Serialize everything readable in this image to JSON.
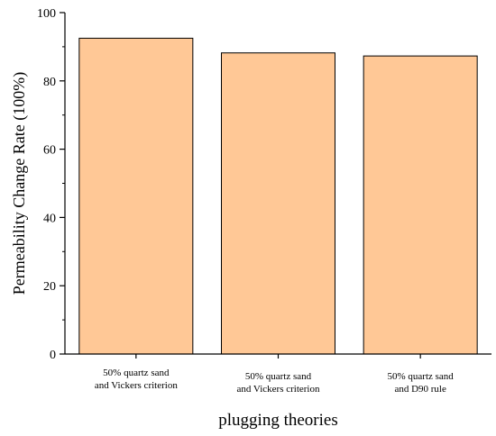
{
  "chart_data": {
    "type": "bar",
    "categories": [
      [
        "50% quartz sand",
        "and Vickers criterion"
      ],
      [
        "50% quartz sand",
        "and Vickers criterion"
      ],
      [
        "50% quartz sand",
        "and D90 rule"
      ]
    ],
    "values": [
      92.5,
      88.2,
      87.3
    ],
    "xlabel": "plugging theories",
    "ylabel": "Permeability Change Rate (100%)",
    "ylim": [
      0,
      100
    ],
    "yticks": [
      0,
      20,
      40,
      60,
      80,
      100
    ],
    "colors": {
      "bar_fill": "#FFC896",
      "bar_stroke": "#000000",
      "axis": "#000000"
    }
  }
}
